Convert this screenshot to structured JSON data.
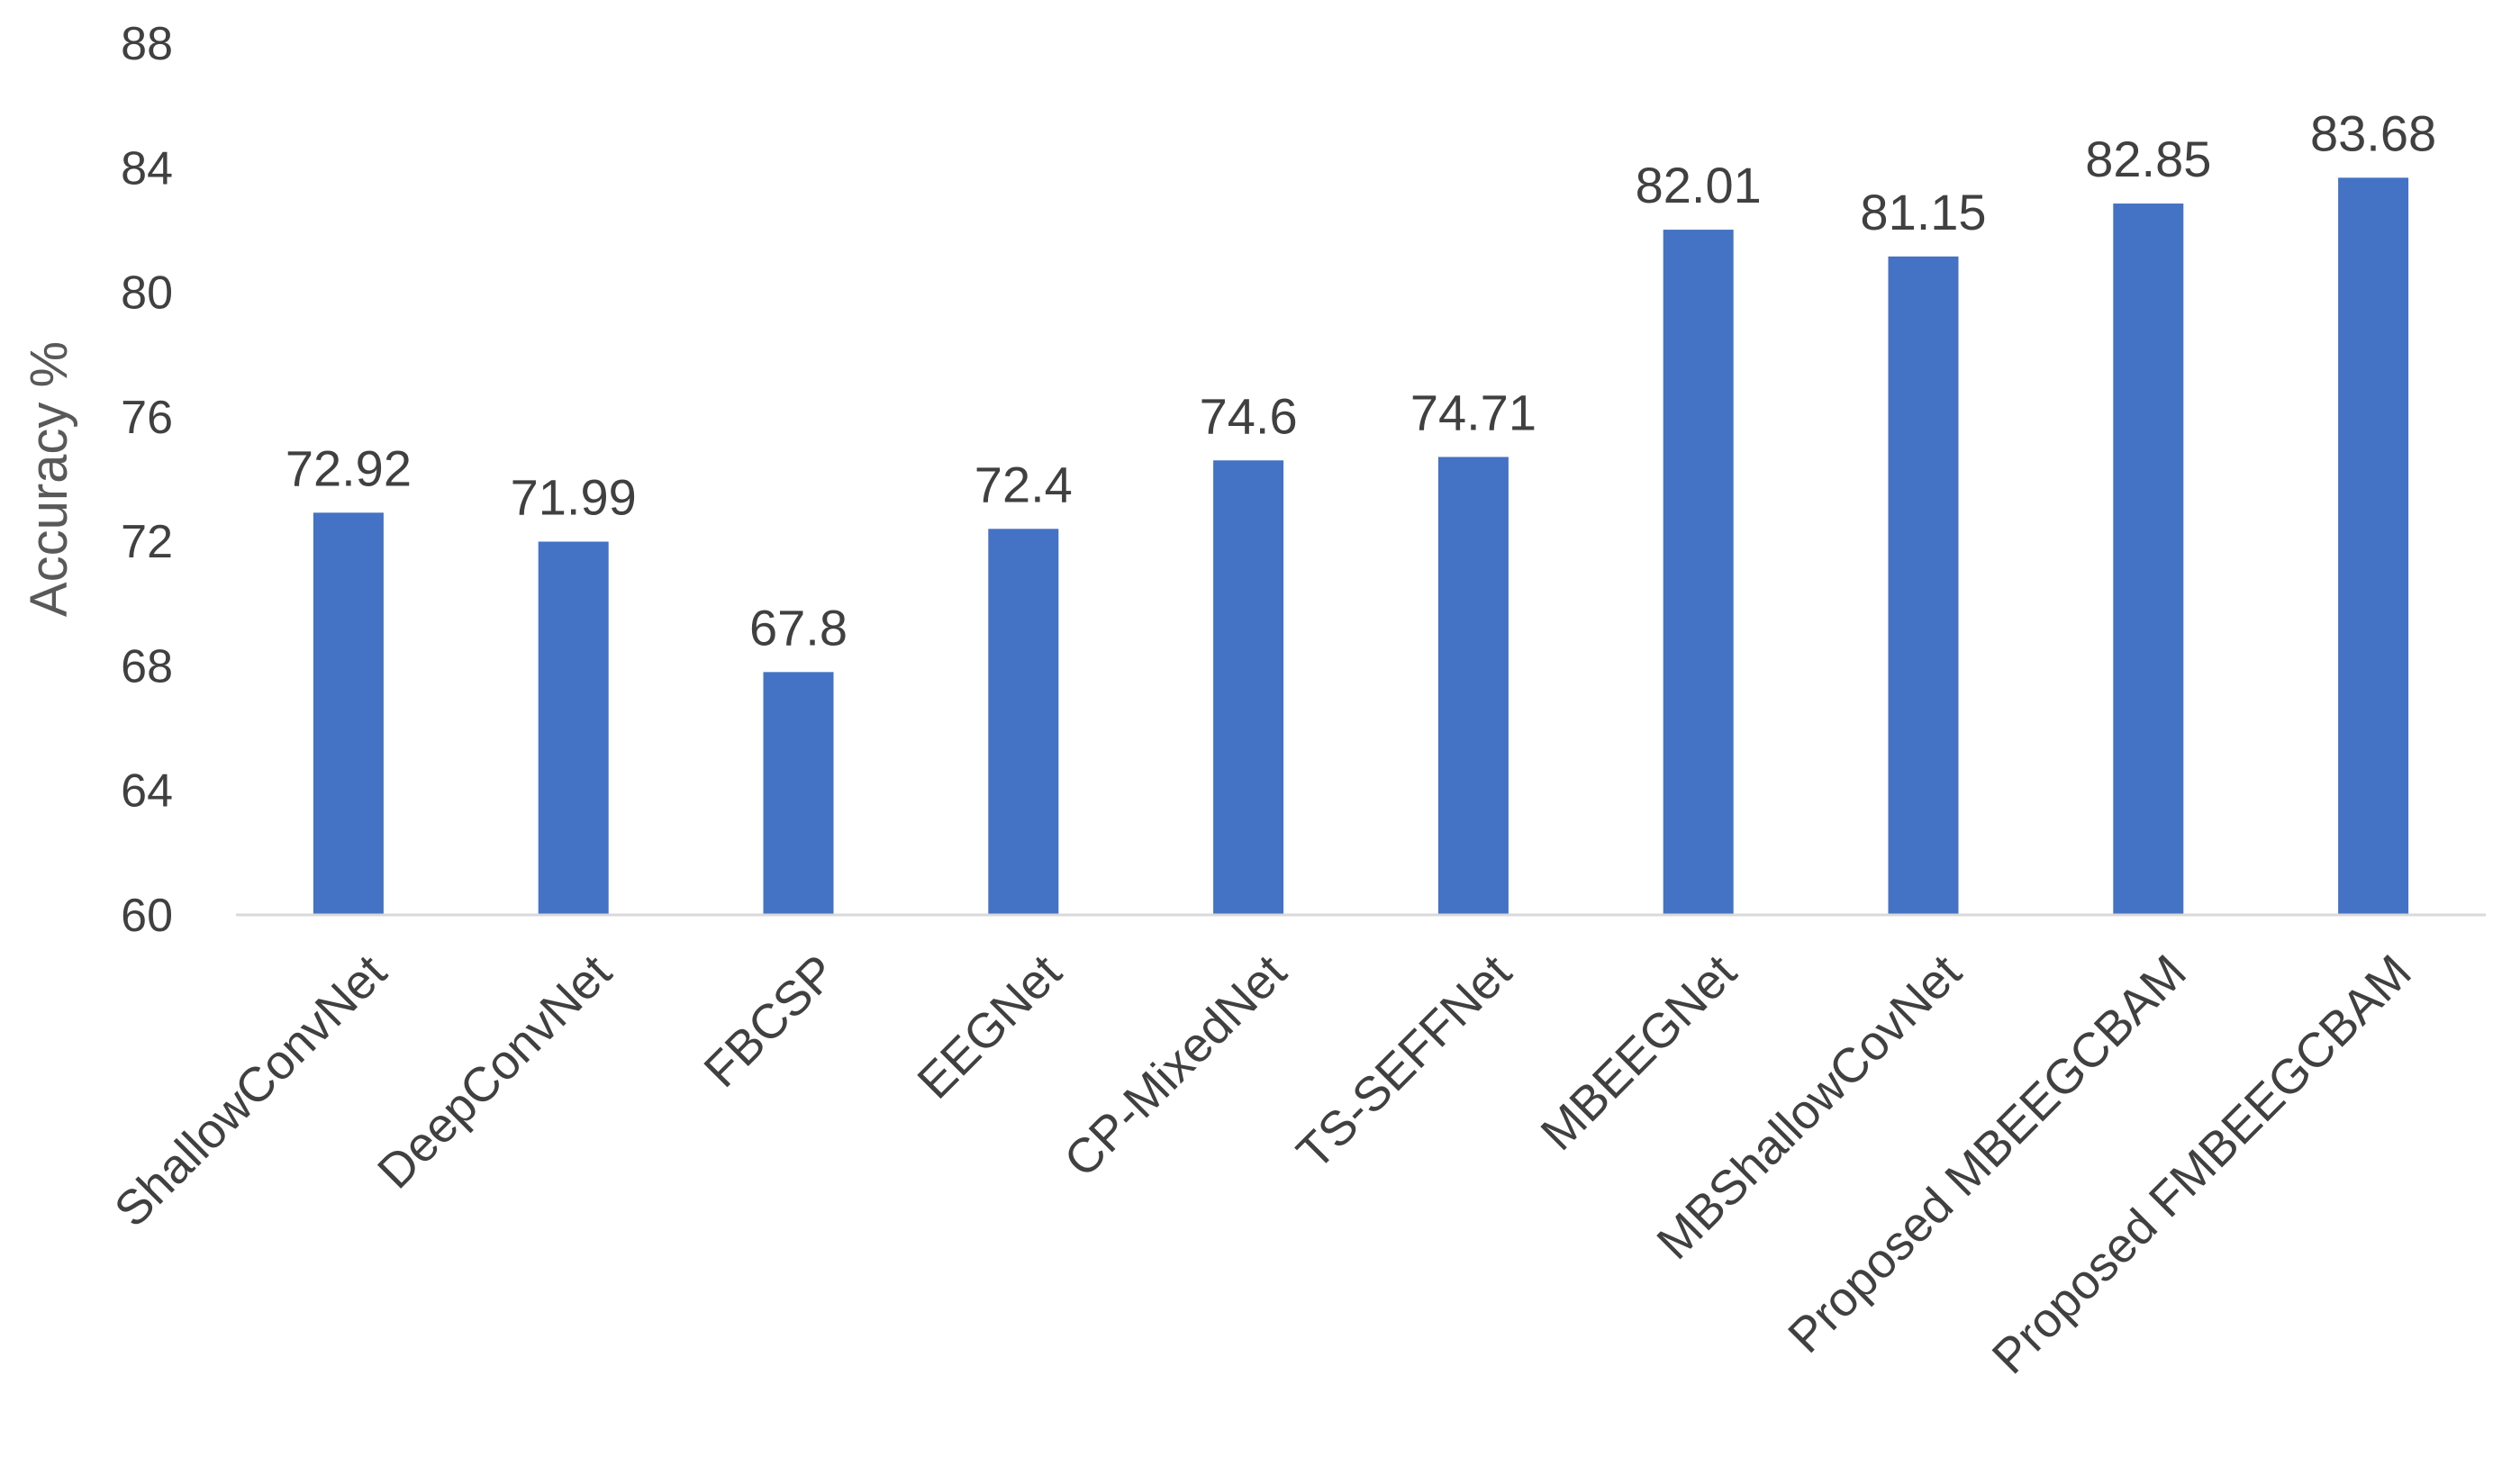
{
  "chart_data": {
    "type": "bar",
    "title": "",
    "xlabel": "",
    "ylabel": "Accuracy %",
    "ylim": [
      60,
      88
    ],
    "yticks": [
      60,
      64,
      68,
      72,
      76,
      80,
      84,
      88
    ],
    "grid": false,
    "categories": [
      "ShallowConvNet",
      "DeepConvNet",
      "FBCSP",
      "EEGNet",
      "CP-MixedNet",
      "TS-SEFFNet",
      "MBEEGNet",
      "MBShallowCovNet",
      "Proposed MBEEGCBAM",
      "Proposed FMBEEGCBAM"
    ],
    "values": [
      72.92,
      71.99,
      67.8,
      72.4,
      74.6,
      74.71,
      82.01,
      81.15,
      82.85,
      83.68
    ],
    "data_labels": [
      "72.92",
      "71.99",
      "67.8",
      "72.4",
      "74.6",
      "74.71",
      "82.01",
      "81.15",
      "82.85",
      "83.68"
    ],
    "bar_color": "#4472C4",
    "axis_color": "#D9D9D9"
  }
}
